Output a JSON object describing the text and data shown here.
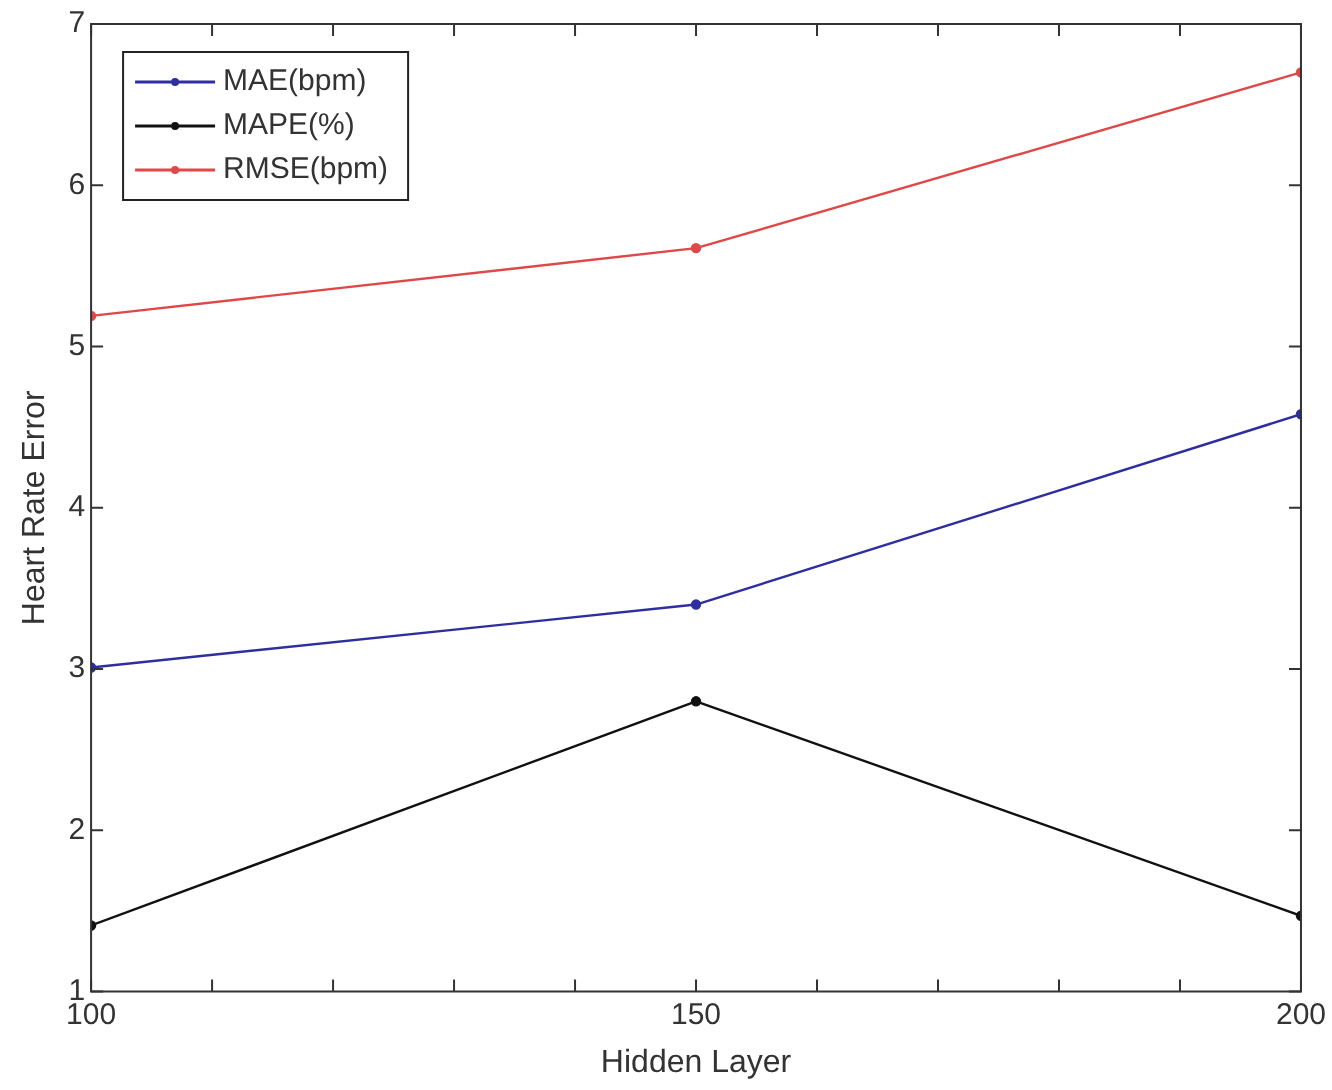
{
  "chart_data": {
    "type": "line",
    "xlabel": "Hidden Layer",
    "ylabel": "Heart Rate Error",
    "x": [
      100,
      150,
      200
    ],
    "series": [
      {
        "name": "MAE(bpm)",
        "color": "#2e2e9e",
        "values": [
          3.01,
          3.4,
          4.58
        ]
      },
      {
        "name": "MAPE(%)",
        "color": "#111111",
        "values": [
          1.41,
          2.8,
          1.47
        ]
      },
      {
        "name": "RMSE(bpm)",
        "color": "#e04848",
        "values": [
          5.19,
          5.61,
          6.7
        ]
      }
    ],
    "xlim": [
      100,
      200
    ],
    "xticks": [
      100,
      {
        "value": 110,
        "label": null
      },
      {
        "value": 120,
        "label": null
      },
      {
        "value": 130,
        "label": null
      },
      {
        "value": 140,
        "label": null
      },
      150,
      {
        "value": 160,
        "label": null
      },
      {
        "value": 170,
        "label": null
      },
      {
        "value": 180,
        "label": null
      },
      {
        "value": 190,
        "label": null
      },
      200
    ],
    "ylim": [
      1,
      7
    ],
    "yticks": [
      1,
      2,
      3,
      4,
      5,
      6,
      7
    ],
    "grid": false,
    "legend": "top left",
    "marker": "circle",
    "line_style": "solid"
  }
}
